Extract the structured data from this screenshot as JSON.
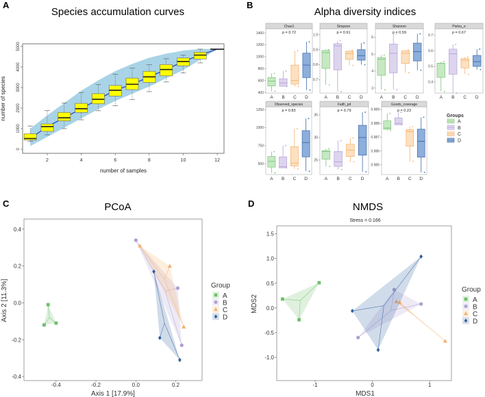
{
  "panel_labels": {
    "a": "A",
    "b": "B",
    "c": "C",
    "d": "D"
  },
  "chart_data": [
    {
      "type": "box",
      "title": "Species accumulation curves",
      "xlabel": "number of samples",
      "ylabel": "number of species",
      "xlim": [
        0.55,
        12.4
      ],
      "ylim": [
        -200,
        5130
      ],
      "xticks": [
        "2",
        "4",
        "6",
        "8",
        "10",
        "12"
      ],
      "yticks": [
        "0",
        "1000",
        "2000",
        "3000",
        "4000",
        "5000"
      ],
      "x": [
        1,
        2,
        3,
        4,
        5,
        6,
        7,
        8,
        9,
        10,
        11,
        12
      ],
      "boxes": [
        [
          380,
          450,
          520,
          750,
          1130
        ],
        [
          700,
          870,
          1100,
          1230,
          1880
        ],
        [
          1000,
          1380,
          1530,
          1790,
          2250
        ],
        [
          1430,
          1790,
          1970,
          2230,
          2760
        ],
        [
          1870,
          2210,
          2430,
          2700,
          3150
        ],
        [
          2120,
          2590,
          2870,
          3100,
          3650
        ],
        [
          2420,
          2900,
          3160,
          3460,
          3940
        ],
        [
          2800,
          3250,
          3520,
          3790,
          4110
        ],
        [
          3270,
          3570,
          3880,
          4120,
          4400
        ],
        [
          3710,
          4060,
          4270,
          4440,
          4570
        ],
        [
          4200,
          4390,
          4580,
          4720,
          4870
        ],
        [
          4870,
          4870,
          4870,
          4870,
          4870
        ]
      ],
      "ci_band": {
        "upper": [
          1000,
          1650,
          2250,
          2850,
          3350,
          3800,
          4150,
          4450,
          4650,
          4800,
          4880,
          4880
        ],
        "lower": [
          150,
          600,
          1050,
          1500,
          1950,
          2350,
          2700,
          3050,
          3450,
          3850,
          4350,
          4870
        ]
      },
      "colors": {
        "box": "#ffff00",
        "band": "#a9d3e6",
        "line": "#1f3fbf"
      }
    },
    {
      "type": "box",
      "title": "Alpha diversity indices",
      "categories": [
        "A",
        "B",
        "C",
        "D"
      ],
      "legend_title": "Groups",
      "colors": {
        "A": {
          "fill": "#c6e8c2",
          "stroke": "#7cc47a"
        },
        "B": {
          "fill": "#ddd4ee",
          "stroke": "#b3a3d4"
        },
        "C": {
          "fill": "#fde0bf",
          "stroke": "#f3b06a"
        },
        "D": {
          "fill": "#8eaedb",
          "stroke": "#3b6aa8"
        }
      },
      "facets": [
        {
          "name": "Chao1",
          "p": "p = 0.72",
          "ylim": [
            390,
            1470
          ],
          "yticks": [
            "400",
            "600",
            "800",
            "1000",
            "1200",
            "1400"
          ],
          "boxes": {
            "A": [
              420,
              510,
              590,
              650,
              720
            ],
            "B": [
              500,
              505,
              560,
              630,
              760
            ],
            "C": [
              500,
              540,
              600,
              860,
              1100
            ],
            "D": [
              440,
              650,
              860,
              1060,
              1250
            ]
          }
        },
        {
          "name": "Simpson",
          "p": "p = 0.91",
          "ylim": [
            0.61,
            1.04
          ],
          "yticks": [
            "0.7",
            "0.8",
            "0.9",
            "1.0"
          ],
          "boxes": {
            "A": [
              0.665,
              0.775,
              0.88,
              0.895,
              0.9
            ],
            "B": [
              0.62,
              0.765,
              0.925,
              0.94,
              0.96
            ],
            "C": [
              0.795,
              0.835,
              0.875,
              0.89,
              0.895
            ],
            "D": [
              0.8,
              0.83,
              0.86,
              0.9,
              0.945
            ]
          }
        },
        {
          "name": "Shannon",
          "p": "p = 0.59",
          "ylim": [
            2.7,
            6.5
          ],
          "yticks": [
            "3",
            "4",
            "5",
            "6"
          ],
          "boxes": {
            "A": [
              2.9,
              3.75,
              4.7,
              4.8,
              4.95
            ],
            "B": [
              2.9,
              3.9,
              5.05,
              5.6,
              6.2
            ],
            "C": [
              3.9,
              4.45,
              5.05,
              5.2,
              5.25
            ],
            "D": [
              4.05,
              4.6,
              5.15,
              5.65,
              6.2
            ]
          }
        },
        {
          "name": "Pielou_e",
          "p": "p = 0.67",
          "ylim": [
            0.33,
            0.74
          ],
          "yticks": [
            "0.4",
            "0.5",
            "0.6",
            "0.7"
          ],
          "boxes": {
            "A": [
              0.34,
              0.43,
              0.52,
              0.52,
              0.53
            ],
            "B": [
              0.33,
              0.45,
              0.58,
              0.61,
              0.64
            ],
            "C": [
              0.45,
              0.49,
              0.54,
              0.55,
              0.56
            ],
            "D": [
              0.48,
              0.5,
              0.53,
              0.57,
              0.61
            ]
          }
        },
        {
          "name": "Observed_species",
          "p": "p = 0.83",
          "ylim": [
            350,
            1290
          ],
          "yticks": [
            "500",
            "750",
            "1000",
            "1250"
          ],
          "boxes": {
            "A": [
              373,
              453,
              532,
              601,
              668
            ],
            "B": [
              443,
              443,
              459,
              595,
              753
            ],
            "C": [
              427,
              468,
              509,
              737,
              984
            ],
            "D": [
              396,
              595,
              794,
              959,
              1127
            ]
          }
        },
        {
          "name": "Faith_pd",
          "p": "p = 0.79",
          "ylim": [
            21.8,
            36.8
          ],
          "yticks": [
            "25",
            "30",
            "35"
          ],
          "boxes": {
            "A": [
              23.6,
              25.2,
              26.9,
              27.1,
              27.5
            ],
            "B": [
              22.9,
              23.6,
              24.6,
              26.9,
              29.3
            ],
            "C": [
              24.6,
              25.8,
              27.2,
              28.5,
              29.9
            ],
            "D": [
              22.4,
              26.1,
              30.0,
              32.7,
              35.6
            ]
          }
        },
        {
          "name": "Goods_coverage",
          "p": "p = 0.23",
          "ylim": [
            0.9843,
            0.9892
          ],
          "yticks": [
            "0.985",
            "0.986",
            "0.987",
            "0.988",
            "0.989"
          ],
          "boxes": {
            "A": [
              0.98749,
              0.98758,
              0.98767,
              0.98818,
              0.98871
            ],
            "B": [
              0.9879,
              0.9879,
              0.988,
              0.9884,
              0.9888
            ],
            "C": [
              0.98525,
              0.98635,
              0.9874,
              0.98755,
              0.98777
            ],
            "D": [
              0.98446,
              0.98556,
              0.9867,
              0.98758,
              0.98844
            ]
          }
        }
      ]
    },
    {
      "type": "scatter",
      "title": "PCoA",
      "xlabel": "Axis 1 [17.9%]",
      "ylabel": "Axis 2 [11.3%]",
      "xlim": [
        -0.561,
        0.332
      ],
      "ylim": [
        -0.422,
        0.455
      ],
      "xticks": [
        "-0.4",
        "-0.2",
        "0.0",
        "0.2"
      ],
      "yticks": [
        "-0.4",
        "-0.2",
        "0.0",
        "0.2",
        "0.4"
      ],
      "legend_title": "Group",
      "series": [
        {
          "name": "A",
          "color": "#6dbf6b",
          "marker": "square",
          "points": [
            [
              -0.44,
              -0.01
            ],
            [
              -0.46,
              -0.12
            ],
            [
              -0.4,
              -0.11
            ]
          ]
        },
        {
          "name": "B",
          "color": "#b09fd3",
          "marker": "circle",
          "points": [
            [
              0.0,
              0.34
            ],
            [
              0.21,
              0.08
            ],
            [
              0.23,
              -0.23
            ]
          ]
        },
        {
          "name": "C",
          "color": "#f5b06b",
          "marker": "triangle",
          "points": [
            [
              0.02,
              0.31
            ],
            [
              0.17,
              0.2
            ],
            [
              0.24,
              -0.13
            ]
          ]
        },
        {
          "name": "D",
          "color": "#2f5f9e",
          "marker": "diamond",
          "points": [
            [
              0.09,
              0.17
            ],
            [
              0.12,
              -0.19
            ],
            [
              0.22,
              -0.31
            ]
          ]
        }
      ]
    },
    {
      "type": "scatter",
      "title": "NMDS",
      "subtitle": "Stress = 0.166",
      "xlabel": "MDS1",
      "ylabel": "MDS2",
      "xlim": [
        -1.67,
        1.38
      ],
      "ylim": [
        -1.47,
        1.66
      ],
      "xticks": [
        "-1",
        "0",
        "1"
      ],
      "yticks": [
        "-1.0",
        "-0.5",
        "0.0",
        "0.5",
        "1.0",
        "1.5"
      ],
      "legend_title": "Group",
      "series": [
        {
          "name": "A",
          "color": "#6dbf6b",
          "marker": "square",
          "points": [
            [
              -1.57,
              0.18
            ],
            [
              -0.93,
              0.51
            ],
            [
              -1.28,
              -0.24
            ]
          ]
        },
        {
          "name": "B",
          "color": "#b09fd3",
          "marker": "circle",
          "points": [
            [
              -0.25,
              -0.6
            ],
            [
              0.38,
              0.37
            ],
            [
              0.85,
              0.08
            ]
          ]
        },
        {
          "name": "C",
          "color": "#f5b06b",
          "marker": "triangle",
          "points": [
            [
              0.42,
              0.13
            ],
            [
              0.48,
              0.11
            ],
            [
              1.27,
              -0.67
            ]
          ]
        },
        {
          "name": "D",
          "color": "#2f5f9e",
          "marker": "diamond",
          "points": [
            [
              -0.35,
              -0.06
            ],
            [
              0.1,
              -0.85
            ],
            [
              0.85,
              1.04
            ]
          ]
        }
      ]
    }
  ]
}
